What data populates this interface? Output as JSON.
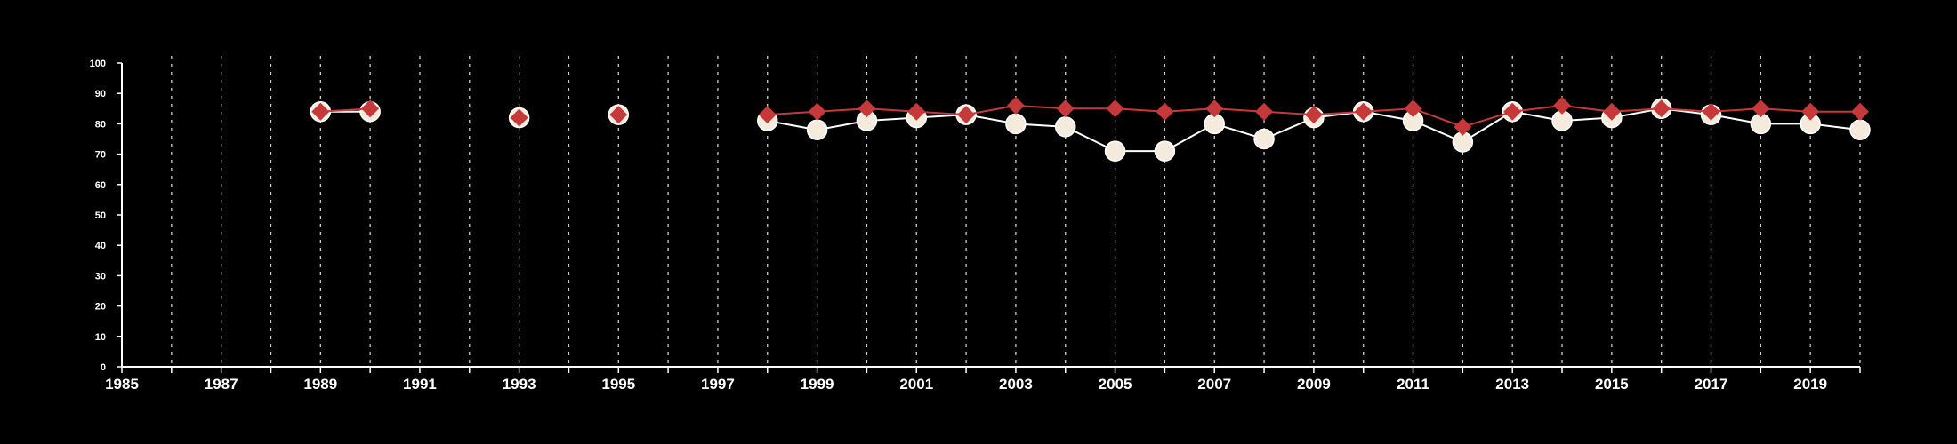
{
  "chart_data": {
    "type": "line",
    "title": "",
    "xlabel": "",
    "ylabel": "",
    "xlim": [
      1985,
      2020
    ],
    "ylim": [
      0,
      100
    ],
    "x_ticks": [
      1985,
      1987,
      1989,
      1991,
      1993,
      1995,
      1997,
      1999,
      2001,
      2003,
      2005,
      2007,
      2009,
      2011,
      2013,
      2015,
      2017,
      2019
    ],
    "y_ticks": [
      0,
      10,
      20,
      30,
      40,
      50,
      60,
      70,
      80,
      90,
      100
    ],
    "vertical_grid": "dashed, yearly",
    "legend": "none",
    "series": [
      {
        "marker": "circle",
        "color": "#ffffff",
        "marker_fill": "#f5ebdc",
        "points": [
          [
            1989,
            84
          ],
          [
            1990,
            84
          ],
          [
            1993,
            82
          ],
          [
            1995,
            83
          ],
          [
            1998,
            81
          ],
          [
            1999,
            78
          ],
          [
            2000,
            81
          ],
          [
            2001,
            82
          ],
          [
            2002,
            83
          ],
          [
            2003,
            80
          ],
          [
            2004,
            79
          ],
          [
            2005,
            71
          ],
          [
            2006,
            71
          ],
          [
            2007,
            80
          ],
          [
            2008,
            75
          ],
          [
            2009,
            82
          ],
          [
            2010,
            84
          ],
          [
            2011,
            81
          ],
          [
            2012,
            74
          ],
          [
            2013,
            84
          ],
          [
            2014,
            81
          ],
          [
            2015,
            82
          ],
          [
            2016,
            85
          ],
          [
            2017,
            83
          ],
          [
            2018,
            80
          ],
          [
            2019,
            80
          ],
          [
            2020,
            78
          ]
        ]
      },
      {
        "marker": "diamond",
        "color": "#c6393a",
        "points": [
          [
            1989,
            84
          ],
          [
            1990,
            85
          ],
          [
            1993,
            82
          ],
          [
            1995,
            83
          ],
          [
            1998,
            83
          ],
          [
            1999,
            84
          ],
          [
            2000,
            85
          ],
          [
            2001,
            84
          ],
          [
            2002,
            83
          ],
          [
            2003,
            86
          ],
          [
            2004,
            85
          ],
          [
            2005,
            85
          ],
          [
            2006,
            84
          ],
          [
            2007,
            85
          ],
          [
            2008,
            84
          ],
          [
            2009,
            83
          ],
          [
            2010,
            84
          ],
          [
            2011,
            85
          ],
          [
            2012,
            79
          ],
          [
            2013,
            84
          ],
          [
            2014,
            86
          ],
          [
            2015,
            84
          ],
          [
            2016,
            85
          ],
          [
            2017,
            84
          ],
          [
            2018,
            85
          ],
          [
            2019,
            84
          ],
          [
            2020,
            84
          ]
        ]
      }
    ]
  }
}
